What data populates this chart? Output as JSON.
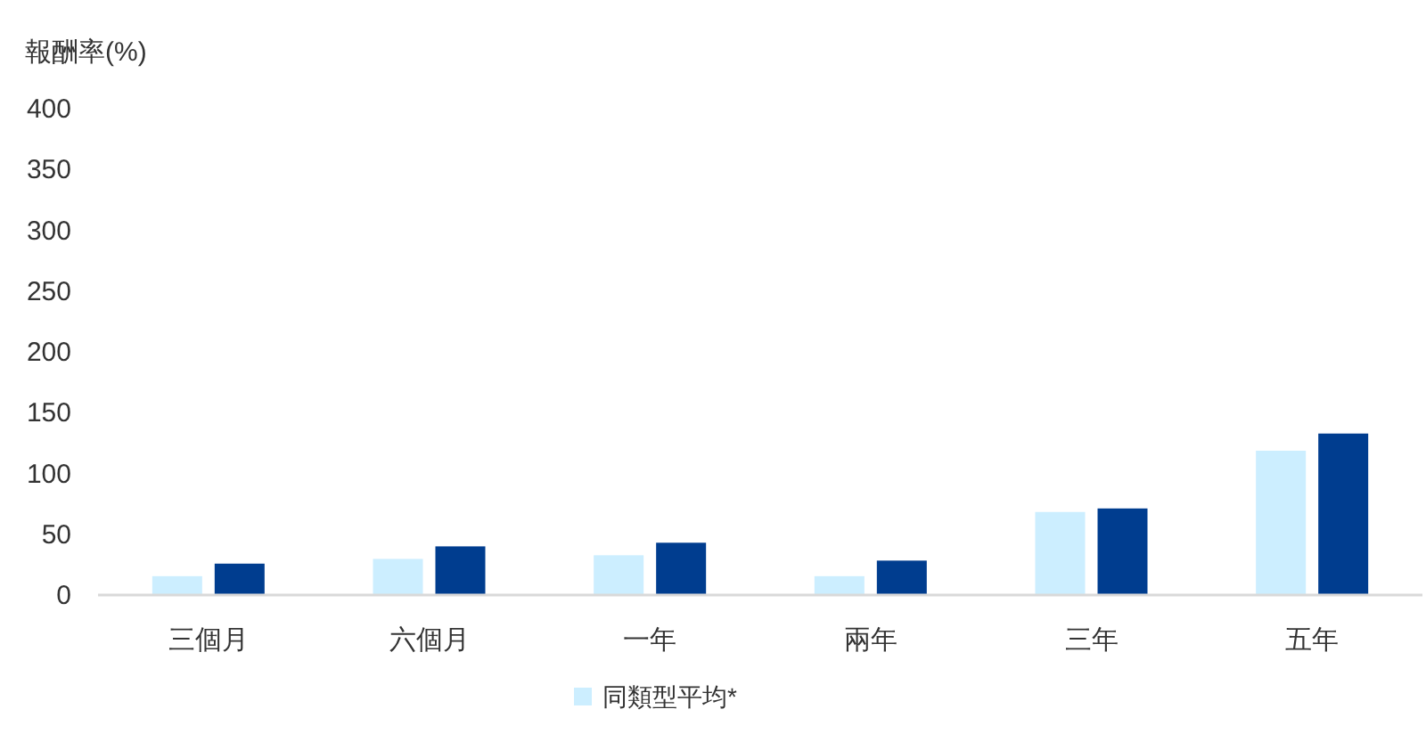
{
  "chart_data": {
    "type": "bar",
    "ylabel": "報酬率(%)",
    "categories": [
      "三個月",
      "六個月",
      "一年",
      "兩年",
      "三年",
      "五年"
    ],
    "series": [
      {
        "name": "同類型平均*",
        "color": "#cceeff",
        "values": [
          15.5,
          29.7,
          32.7,
          15.5,
          68.3,
          118.7
        ]
      },
      {
        "color": "#003d8f",
        "values": [
          25.8,
          40,
          43,
          28.3,
          71.2,
          132.8
        ]
      }
    ],
    "ylim": [
      0,
      400
    ],
    "yticks": [
      0,
      50,
      100,
      150,
      200,
      250,
      300,
      350,
      400
    ],
    "grid": false,
    "legend": "bottom"
  }
}
